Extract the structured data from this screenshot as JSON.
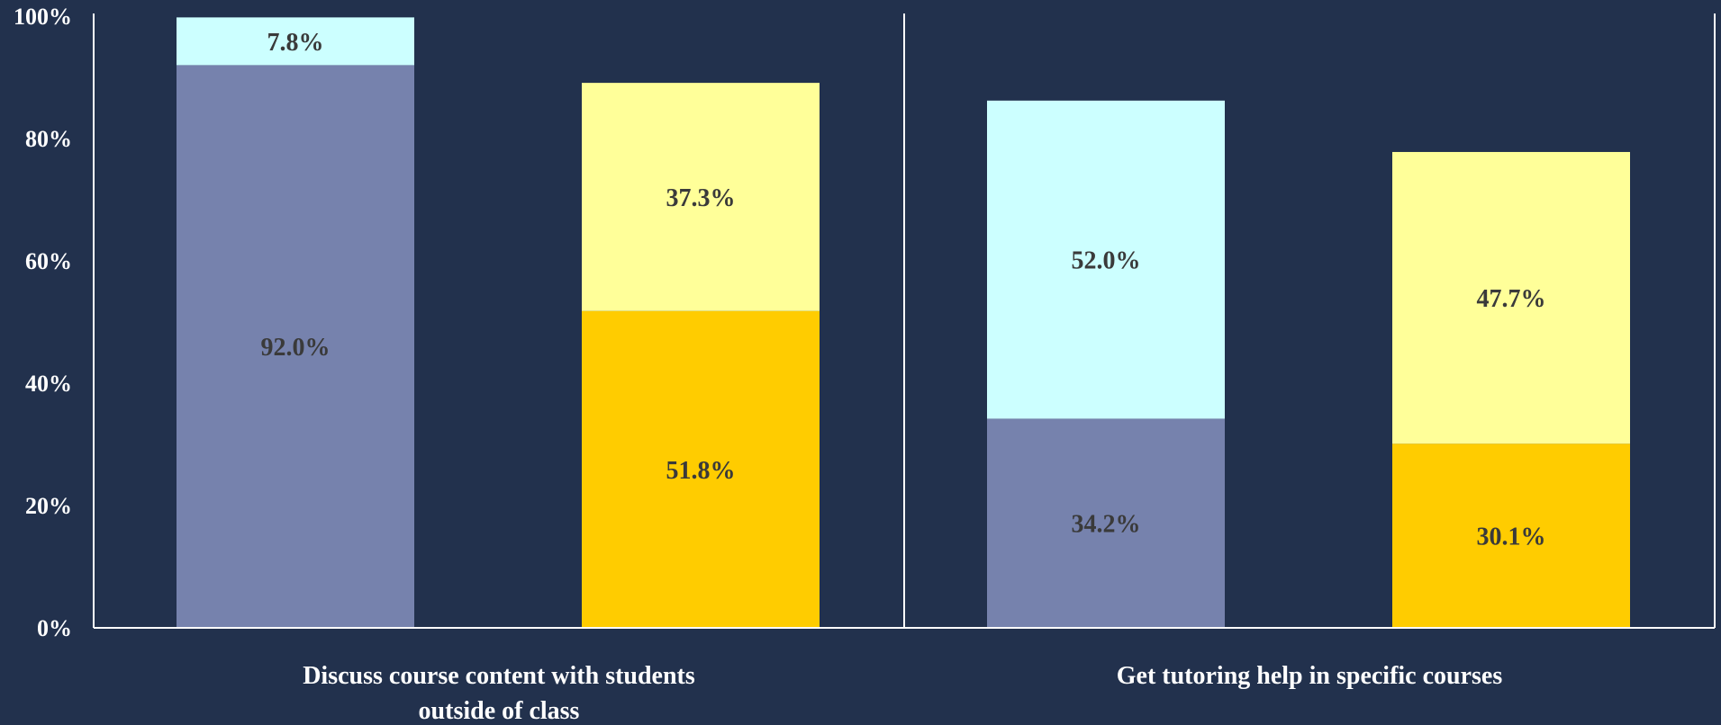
{
  "chart_data": {
    "type": "bar",
    "stacked": true,
    "y_axis": {
      "range": [
        0,
        100
      ],
      "unit": "%",
      "ticks": [
        "0%",
        "20%",
        "40%",
        "60%",
        "80%",
        "100%"
      ]
    },
    "groups": [
      {
        "category_lines": [
          "Discuss course content with students",
          "outside of  class"
        ],
        "bars": [
          {
            "segments": [
              {
                "value": 92.0,
                "label": "92.0%",
                "color": "#7682ad"
              },
              {
                "value": 7.8,
                "label": "7.8%",
                "color": "#ccffff"
              }
            ]
          },
          {
            "segments": [
              {
                "value": 51.8,
                "label": "51.8%",
                "color": "#ffcc00"
              },
              {
                "value": 37.3,
                "label": "37.3%",
                "color": "#ffff99"
              }
            ]
          }
        ]
      },
      {
        "category_lines": [
          "Get tutoring help in specific courses"
        ],
        "bars": [
          {
            "segments": [
              {
                "value": 34.2,
                "label": "34.2%",
                "color": "#7682ad"
              },
              {
                "value": 52.0,
                "label": "52.0%",
                "color": "#ccffff"
              }
            ]
          },
          {
            "segments": [
              {
                "value": 30.1,
                "label": "30.1%",
                "color": "#ffcc00"
              },
              {
                "value": 47.7,
                "label": "47.7%",
                "color": "#ffff99"
              }
            ]
          }
        ]
      }
    ],
    "colors": {
      "background": "#22314d",
      "axis": "#ffffff",
      "text": "#ffffff",
      "data_label": "#3a3a3a"
    }
  }
}
